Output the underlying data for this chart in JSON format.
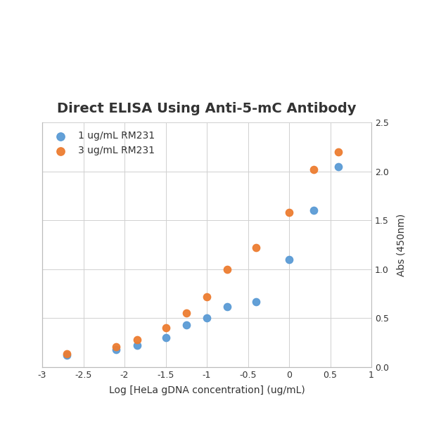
{
  "title": "Direct ELISA Using Anti-5-mC Antibody",
  "xlabel": "Log [HeLa gDNA concentration] (ug/mL)",
  "ylabel": "Abs (450nm)",
  "xlim": [
    -3,
    1
  ],
  "ylim": [
    0.0,
    2.5
  ],
  "xticks": [
    -3,
    -2.5,
    -2,
    -1.5,
    -1,
    -0.5,
    0,
    0.5,
    1
  ],
  "yticks": [
    0.0,
    0.5,
    1.0,
    1.5,
    2.0,
    2.5
  ],
  "series": [
    {
      "label": "1 ug/mL RM231",
      "color": "#5b9bd5",
      "x": [
        -2.7,
        -2.1,
        -1.85,
        -1.5,
        -1.25,
        -1.0,
        -0.75,
        -0.4,
        0.0,
        0.3,
        0.6
      ],
      "y": [
        0.12,
        0.18,
        0.22,
        0.3,
        0.43,
        0.5,
        0.62,
        0.67,
        1.1,
        1.6,
        2.05
      ]
    },
    {
      "label": "3 ug/mL RM231",
      "color": "#ed7d31",
      "x": [
        -2.7,
        -2.1,
        -1.85,
        -1.5,
        -1.25,
        -1.0,
        -0.75,
        -0.4,
        0.0,
        0.3,
        0.6
      ],
      "y": [
        0.14,
        0.21,
        0.28,
        0.4,
        0.55,
        0.72,
        1.0,
        1.22,
        1.58,
        2.02,
        2.2
      ]
    }
  ],
  "title_fontsize": 14,
  "label_fontsize": 10,
  "tick_fontsize": 9,
  "legend_fontsize": 10,
  "marker_size": 55,
  "plot_bg": "#ffffff",
  "fig_bg": "#ffffff",
  "grid_color": "#d0d0d0",
  "spine_color": "#bbbbbb",
  "text_color": "#333333"
}
